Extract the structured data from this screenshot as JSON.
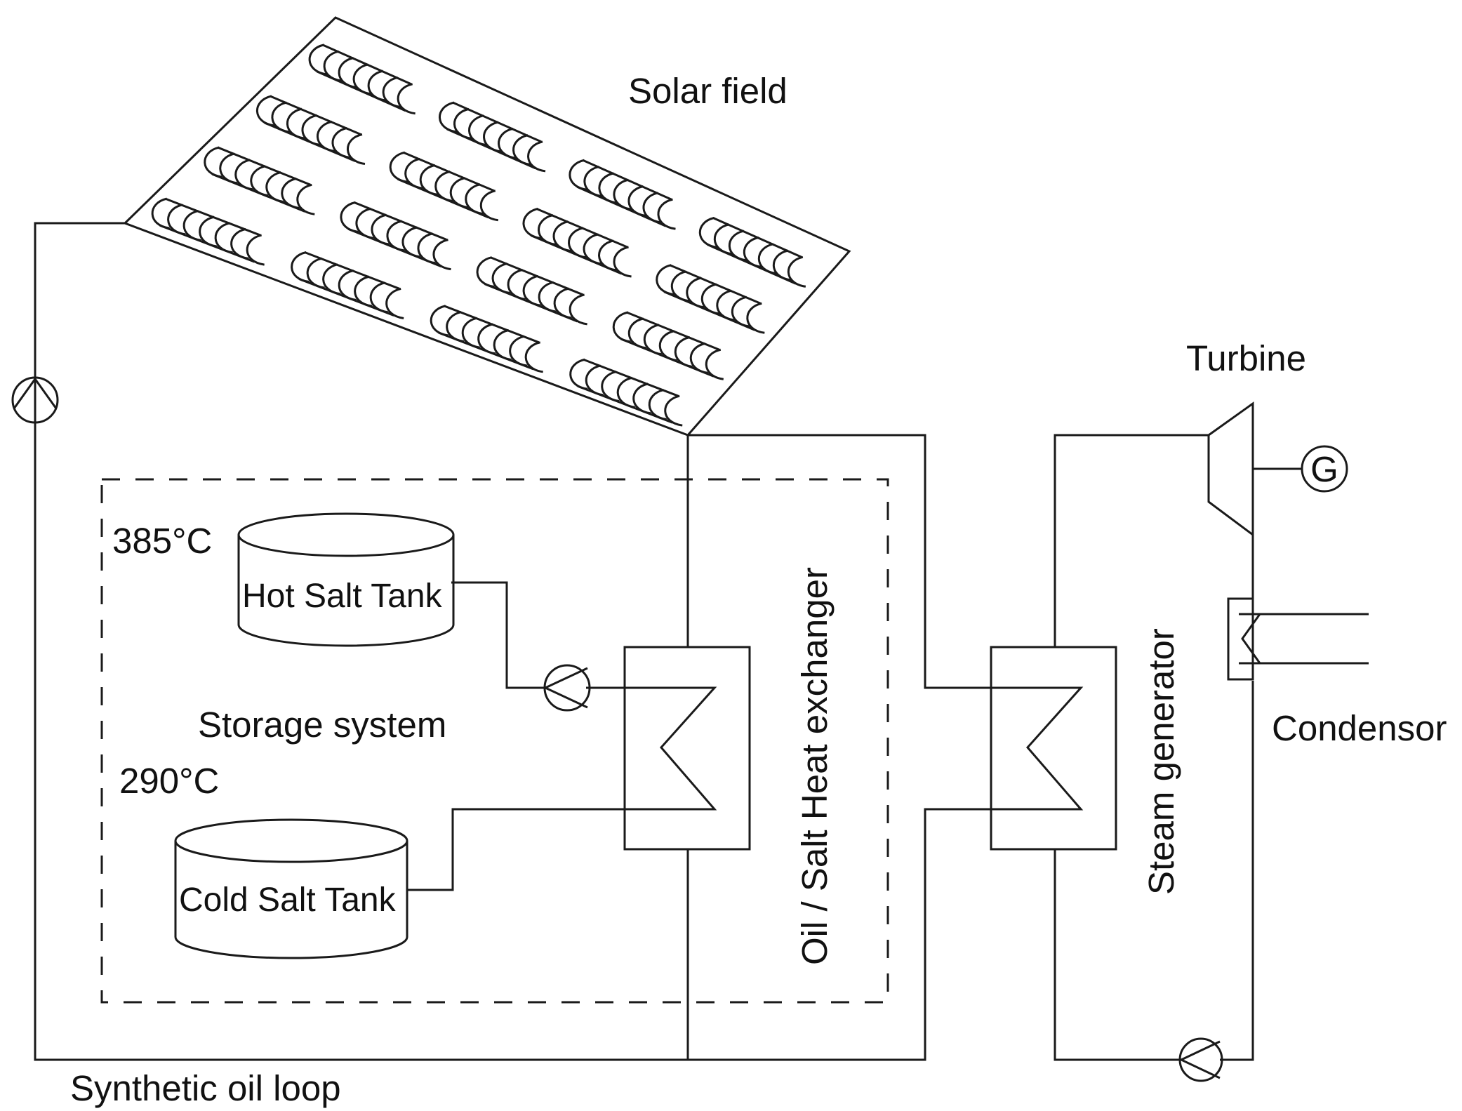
{
  "labels": {
    "solar_field": "Solar field",
    "turbine": "Turbine",
    "generator": "G",
    "condensor": "Condensor",
    "hot_temp": "385°C",
    "hot_tank": "Hot Salt Tank",
    "storage_system": "Storage system",
    "cold_temp": "290°C",
    "cold_tank": "Cold Salt Tank",
    "oil_salt_hx": "Oil / Salt Heat exchanger",
    "steam_generator": "Steam generator",
    "oil_loop": "Synthetic oil loop"
  },
  "colors": {
    "line": "#1a1a1a",
    "text": "#111111",
    "background": "#ffffff"
  },
  "icons": [
    "pump-icon",
    "heat-exchanger-icon",
    "turbine-icon",
    "generator-icon",
    "condenser-icon",
    "parabolic-trough-icon"
  ]
}
